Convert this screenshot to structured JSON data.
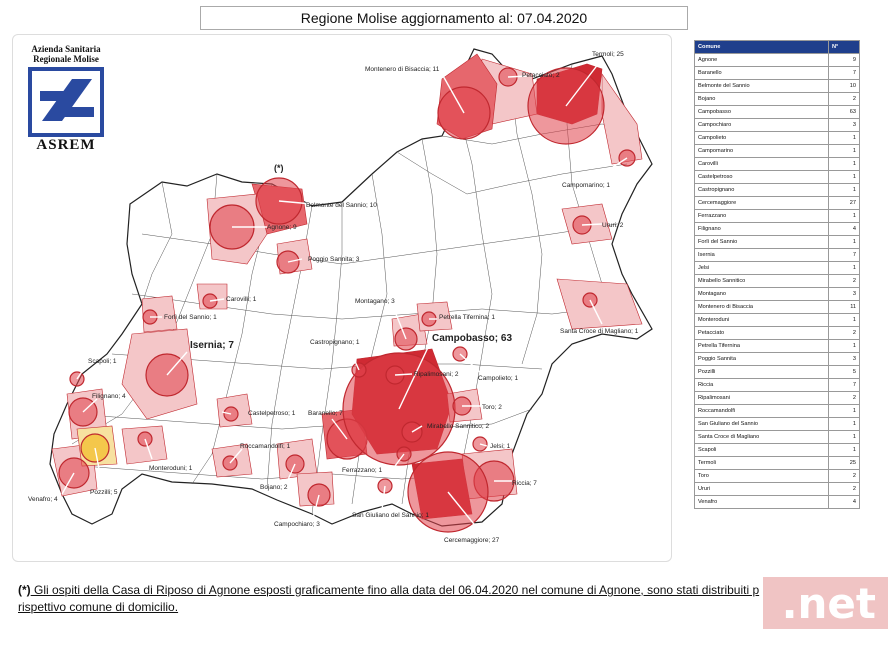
{
  "title": "Regione Molise aggiornamento al: 07.04.2020",
  "logo": {
    "line1": "Azienda Sanitaria",
    "line2": "Regionale Molise",
    "acronym": "ASREM"
  },
  "asterisk_marker": "(*)",
  "map_labels": [
    {
      "id": "termoli",
      "text": "Termoli; 25"
    },
    {
      "id": "montenero",
      "text": "Montenero di Bisaccia; 11"
    },
    {
      "id": "petacciato",
      "text": "Petacciato; 2"
    },
    {
      "id": "campomarino",
      "text": "Campomarino; 1"
    },
    {
      "id": "ururi",
      "text": "Ururi; 2"
    },
    {
      "id": "belmonte",
      "text": "Belmonte del Sannio; 10"
    },
    {
      "id": "agnone",
      "text": "Agnone; 9"
    },
    {
      "id": "poggio",
      "text": "Poggio Sannita; 3"
    },
    {
      "id": "carovilli",
      "text": "Carovilli; 1"
    },
    {
      "id": "forli",
      "text": "Forlì del Sannio; 1"
    },
    {
      "id": "montagano",
      "text": "Montagano; 3"
    },
    {
      "id": "petrella",
      "text": "Petrella Tifernina; 1"
    },
    {
      "id": "santacroce",
      "text": "Santa Croce di Magliano; 1"
    },
    {
      "id": "isernia",
      "text": "Isernia; 7"
    },
    {
      "id": "campobasso",
      "text": "Campobasso; 63"
    },
    {
      "id": "castropignano",
      "text": "Castropignano; 1"
    },
    {
      "id": "ripalimosani",
      "text": "Ripalimosani; 2"
    },
    {
      "id": "campolieto",
      "text": "Campolieto; 1"
    },
    {
      "id": "scapoli",
      "text": "Scapoli; 1"
    },
    {
      "id": "filignano",
      "text": "Filignano; 4"
    },
    {
      "id": "castelpetroso",
      "text": "Castelpetroso; 1"
    },
    {
      "id": "baranello",
      "text": "Baranello; 7"
    },
    {
      "id": "toro",
      "text": "Toro; 2"
    },
    {
      "id": "mirabello",
      "text": "Mirabello Sannitico; 2"
    },
    {
      "id": "jelsi",
      "text": "Jelsi; 1"
    },
    {
      "id": "roccamandolfi",
      "text": "Roccamandolfi; 1"
    },
    {
      "id": "monteroduni",
      "text": "Monteroduni; 1"
    },
    {
      "id": "ferrazzano",
      "text": "Ferrazzano; 1"
    },
    {
      "id": "riccia",
      "text": "Riccia; 7"
    },
    {
      "id": "bojano",
      "text": "Bojano; 2"
    },
    {
      "id": "venafro",
      "text": "Venafro; 4"
    },
    {
      "id": "pozzilli",
      "text": "Pozzilli; 5"
    },
    {
      "id": "campochiaro",
      "text": "Campochiaro; 3"
    },
    {
      "id": "sangiuliano",
      "text": "San Giuliano del Sannio; 1"
    },
    {
      "id": "cercemaggiore",
      "text": "Cercemaggiore; 27"
    }
  ],
  "table": {
    "headers": [
      "Comune",
      "N°"
    ],
    "rows": [
      [
        "Agnone",
        "9"
      ],
      [
        "Baranello",
        "7"
      ],
      [
        "Belmonte del Sannio",
        "10"
      ],
      [
        "Bojano",
        "2"
      ],
      [
        "Campobasso",
        "63"
      ],
      [
        "Campochiaro",
        "3"
      ],
      [
        "Campolieto",
        "1"
      ],
      [
        "Campomarino",
        "1"
      ],
      [
        "Carovilli",
        "1"
      ],
      [
        "Castelpetroso",
        "1"
      ],
      [
        "Castropignano",
        "1"
      ],
      [
        "Cercemaggiore",
        "27"
      ],
      [
        "Ferrazzano",
        "1"
      ],
      [
        "Filignano",
        "4"
      ],
      [
        "Forlì del Sannio",
        "1"
      ],
      [
        "Isernia",
        "7"
      ],
      [
        "Jelsi",
        "1"
      ],
      [
        "Mirabello Sannitico",
        "2"
      ],
      [
        "Montagano",
        "3"
      ],
      [
        "Montenero di Bisaccia",
        "11"
      ],
      [
        "Monteroduni",
        "1"
      ],
      [
        "Petacciato",
        "2"
      ],
      [
        "Petrella Tifernina",
        "1"
      ],
      [
        "Poggio Sannita",
        "3"
      ],
      [
        "Pozzilli",
        "5"
      ],
      [
        "Riccia",
        "7"
      ],
      [
        "Ripalimosani",
        "2"
      ],
      [
        "Roccamandolfi",
        "1"
      ],
      [
        "San Giuliano del Sannio",
        "1"
      ],
      [
        "Santa Croce di Magliano",
        "1"
      ],
      [
        "Scapoli",
        "1"
      ],
      [
        "Termoli",
        "25"
      ],
      [
        "Toro",
        "2"
      ],
      [
        "Ururi",
        "2"
      ],
      [
        "Venafro",
        "4"
      ]
    ]
  },
  "footnote": {
    "star": "(*)",
    "text_line1": " Gli ospiti della Casa di Riposo di Agnone esposti graficamente fino alla data del 06.04.2020 nel comune di Agnone, sono stati distribuiti p",
    "text_line2": "rispettivo comune di domicilio."
  },
  "watermark": ".net",
  "colors": {
    "table_header": "#1f3f8c",
    "circle_fill": "#e0424a",
    "circle_stroke": "#c0282f",
    "area_light": "#f4c6c8",
    "area_dark": "#cf2a33",
    "pozzilli_fill": "#f3c23c"
  }
}
